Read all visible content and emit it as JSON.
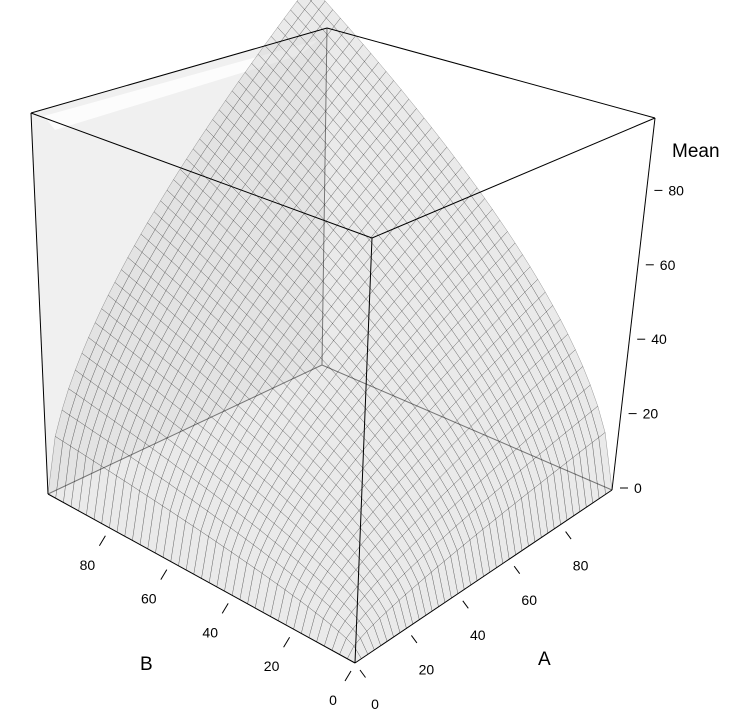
{
  "chart_data": {
    "type": "surface3d",
    "title": "",
    "x_axis": {
      "label": "A",
      "ticks": [
        0,
        20,
        40,
        60,
        80
      ],
      "range": [
        0,
        100
      ]
    },
    "y_axis": {
      "label": "B",
      "ticks": [
        0,
        20,
        40,
        60,
        80
      ],
      "range": [
        0,
        100
      ]
    },
    "z_axis": {
      "label": "Mean",
      "ticks": [
        0,
        20,
        40,
        60,
        80
      ],
      "range": [
        0,
        100
      ]
    },
    "surface": {
      "description": "Mean = sqrt(A * B)",
      "corners": [
        {
          "A": 0,
          "B": 0,
          "Mean": 0
        },
        {
          "A": 100,
          "B": 0,
          "Mean": 0
        },
        {
          "A": 0,
          "B": 100,
          "Mean": 0
        },
        {
          "A": 100,
          "B": 100,
          "Mean": 100
        }
      ]
    },
    "colors": {
      "surface": "#d8d8d8",
      "grid": "#000000",
      "box_back_wall": "#f0f0f0"
    }
  }
}
